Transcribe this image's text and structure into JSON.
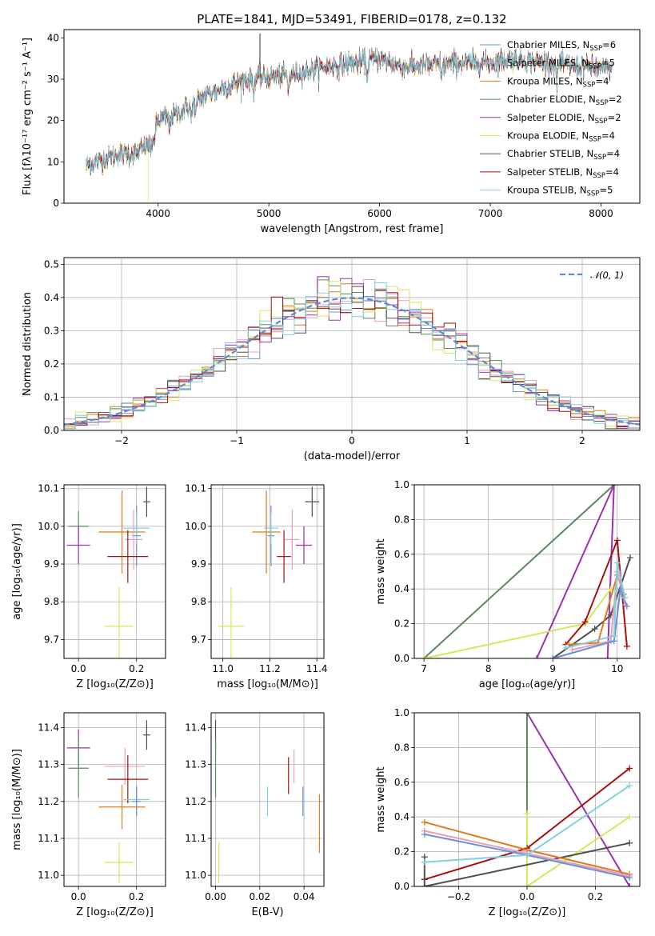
{
  "title": "PLATE=1841, MJD=53491, FIBERID=0178, z=0.132",
  "colors": {
    "chabrier_miles": "#6b8fd6",
    "salpeter_miles": "#e8a0b8",
    "kroupa_miles": "#e07a1f",
    "chabrier_elodie": "#5a8a5a",
    "salpeter_elodie": "#9b30b0",
    "kroupa_elodie": "#d4e85a",
    "chabrier_stelib": "#505050",
    "salpeter_stelib": "#a81010",
    "kroupa_stelib": "#80d0e0",
    "normal_curve": "#5b8ad6"
  },
  "chart_data": [
    {
      "id": "spectrum",
      "type": "line",
      "xlabel": "wavelength [Angstrom, rest frame]",
      "ylabel": "Flux [fλ10⁻¹⁷ erg cm⁻² s⁻¹ A⁻¹]",
      "xlim": [
        3150,
        8350
      ],
      "ylim": [
        0,
        42
      ],
      "xticks": [
        4000,
        5000,
        6000,
        7000,
        8000
      ],
      "yticks": [
        0,
        10,
        20,
        30,
        40
      ],
      "legend_position": "top-right",
      "series": [
        {
          "name": "Chabrier MILES, N",
          "sub": "SSP",
          "suffix": "=6",
          "key": "chabrier_miles"
        },
        {
          "name": "Salpeter MILES, N",
          "sub": "SSP",
          "suffix": "=5",
          "key": "salpeter_miles"
        },
        {
          "name": "Kroupa MILES, N",
          "sub": "SSP",
          "suffix": "=4",
          "key": "kroupa_miles"
        },
        {
          "name": "Chabrier ELODIE, N",
          "sub": "SSP",
          "suffix": "=2",
          "key": "chabrier_elodie"
        },
        {
          "name": "Salpeter ELODIE, N",
          "sub": "SSP",
          "suffix": "=2",
          "key": "salpeter_elodie"
        },
        {
          "name": "Kroupa ELODIE, N",
          "sub": "SSP",
          "suffix": "=4",
          "key": "kroupa_elodie"
        },
        {
          "name": "Chabrier STELIB, N",
          "sub": "SSP",
          "suffix": "=4",
          "key": "chabrier_stelib"
        },
        {
          "name": "Salpeter STELIB, N",
          "sub": "SSP",
          "suffix": "=4",
          "key": "salpeter_stelib"
        },
        {
          "name": "Kroupa STELIB, N",
          "sub": "SSP",
          "suffix": "=5",
          "key": "kroupa_stelib"
        }
      ],
      "spectrum_anchors": [
        [
          3350,
          9
        ],
        [
          3500,
          10.5
        ],
        [
          3650,
          12
        ],
        [
          3800,
          12
        ],
        [
          3900,
          14
        ],
        [
          3950,
          16
        ],
        [
          4000,
          20
        ],
        [
          4200,
          22
        ],
        [
          4300,
          24
        ],
        [
          4500,
          27
        ],
        [
          4800,
          30
        ],
        [
          5000,
          30.5
        ],
        [
          5200,
          31
        ],
        [
          5500,
          33
        ],
        [
          5800,
          34
        ],
        [
          6000,
          35
        ],
        [
          6200,
          33
        ],
        [
          6500,
          33.5
        ],
        [
          6800,
          34
        ],
        [
          7000,
          34
        ],
        [
          7200,
          35
        ],
        [
          7500,
          34
        ],
        [
          8000,
          32.5
        ],
        [
          8100,
          32.5
        ]
      ],
      "dropouts": [
        {
          "key": "salpeter_stelib",
          "wavelength": 3560
        },
        {
          "key": "kroupa_elodie",
          "wavelength": 3910
        },
        {
          "key": "kroupa_elodie",
          "wavelength": 6780
        },
        {
          "key": "salpeter_stelib",
          "wavelength": 7420
        }
      ]
    },
    {
      "id": "residuals",
      "type": "histogram",
      "xlabel": "(data-model)/error",
      "ylabel": "Normed distribution",
      "xlim": [
        -2.5,
        2.5
      ],
      "ylim": [
        0,
        0.52
      ],
      "xticks": [
        -2,
        -1,
        0,
        1,
        2
      ],
      "yticks": [
        0.0,
        0.1,
        0.2,
        0.3,
        0.4,
        0.5
      ],
      "bin_width": 0.1,
      "bin_start": -2.5,
      "legend": "𝒩(0, 1)",
      "legend_position": "top-right"
    },
    {
      "id": "age_vs_Z",
      "type": "scatter",
      "xlabel": "Z [log₁₀(Z/Z⊙)]",
      "ylabel": "age  [log₁₀(age/yr)]",
      "xlim": [
        -0.05,
        0.3
      ],
      "ylim": [
        9.65,
        10.11
      ],
      "xticks": [
        0.0,
        0.2
      ],
      "yticks": [
        9.7,
        9.8,
        9.9,
        10.0,
        10.1
      ],
      "points": [
        {
          "key": "chabrier_elodie",
          "x": 0.0,
          "y": 10.0,
          "xerr": 0.035,
          "yerr": 0.04
        },
        {
          "key": "salpeter_elodie",
          "x": 0.0,
          "y": 9.95,
          "xerr": 0.04,
          "yerr": 0.05
        },
        {
          "key": "kroupa_elodie",
          "x": 0.14,
          "y": 9.735,
          "xerr": 0.05,
          "yerr": 0.105
        },
        {
          "key": "kroupa_miles",
          "x": 0.15,
          "y": 9.985,
          "xerr": 0.08,
          "yerr": 0.11
        },
        {
          "key": "chabrier_miles",
          "x": 0.2,
          "y": 9.975,
          "xerr": 0.015,
          "yerr": 0.08
        },
        {
          "key": "salpeter_miles",
          "x": 0.19,
          "y": 9.965,
          "xerr": 0.03,
          "yerr": 0.08
        },
        {
          "key": "kroupa_stelib",
          "x": 0.2,
          "y": 9.995,
          "xerr": 0.045,
          "yerr": 0.04
        },
        {
          "key": "salpeter_stelib",
          "x": 0.17,
          "y": 9.92,
          "xerr": 0.07,
          "yerr": 0.07
        },
        {
          "key": "chabrier_stelib",
          "x": 0.235,
          "y": 10.065,
          "xerr": 0.012,
          "yerr": 0.04
        }
      ]
    },
    {
      "id": "age_vs_mass",
      "type": "scatter",
      "xlabel": "mass [log₁₀(M/M⊙)]",
      "ylabel": "",
      "xlim": [
        10.95,
        11.43
      ],
      "ylim": [
        9.65,
        10.11
      ],
      "xticks": [
        11.0,
        11.2,
        11.4
      ],
      "yticks": [
        9.7,
        9.8,
        9.9,
        10.0,
        10.1
      ],
      "points": [
        {
          "key": "kroupa_elodie",
          "x": 11.035,
          "y": 9.735,
          "xerr": 0.055,
          "yerr": 0.105
        },
        {
          "key": "kroupa_miles",
          "x": 11.185,
          "y": 9.985,
          "xerr": 0.06,
          "yerr": 0.11
        },
        {
          "key": "chabrier_miles",
          "x": 11.205,
          "y": 9.975,
          "xerr": 0.015,
          "yerr": 0.08
        },
        {
          "key": "kroupa_stelib",
          "x": 11.205,
          "y": 9.995,
          "xerr": 0.03,
          "yerr": 0.04
        },
        {
          "key": "salpeter_miles",
          "x": 11.295,
          "y": 9.965,
          "xerr": 0.03,
          "yerr": 0.08
        },
        {
          "key": "salpeter_stelib",
          "x": 11.26,
          "y": 9.92,
          "xerr": 0.03,
          "yerr": 0.07
        },
        {
          "key": "salpeter_elodie",
          "x": 11.345,
          "y": 9.95,
          "xerr": 0.035,
          "yerr": 0.05
        },
        {
          "key": "chabrier_stelib",
          "x": 11.38,
          "y": 10.065,
          "xerr": 0.03,
          "yerr": 0.04
        }
      ]
    },
    {
      "id": "weight_vs_age",
      "type": "line",
      "xlabel": "age  [log₁₀(age/yr)]",
      "ylabel": "mass weight",
      "xlim": [
        6.85,
        10.35
      ],
      "ylim": [
        0,
        1
      ],
      "xticks": [
        7,
        8,
        9,
        10
      ],
      "yticks": [
        0.0,
        0.2,
        0.4,
        0.6,
        0.8,
        1.0
      ],
      "series": [
        {
          "key": "chabrier_elodie",
          "x": [
            7.0,
            9.95
          ],
          "y": [
            0.0,
            1.0
          ]
        },
        {
          "key": "salpeter_elodie",
          "x": [
            8.75,
            9.95,
            9.85
          ],
          "y": [
            0.0,
            1.0,
            0.0
          ]
        },
        {
          "key": "kroupa_elodie",
          "x": [
            7.0,
            9.5,
            9.9,
            10.05
          ],
          "y": [
            0.0,
            0.2,
            0.4,
            0.4
          ]
        },
        {
          "key": "salpeter_stelib",
          "x": [
            9.2,
            9.5,
            10.0,
            10.15
          ],
          "y": [
            0.08,
            0.21,
            0.68,
            0.07
          ]
        },
        {
          "key": "chabrier_stelib",
          "x": [
            9.0,
            9.65,
            9.9,
            10.2
          ],
          "y": [
            0.0,
            0.17,
            0.25,
            0.58
          ]
        },
        {
          "key": "kroupa_miles",
          "x": [
            9.25,
            9.7,
            10.0,
            10.1
          ],
          "y": [
            0.08,
            0.09,
            0.48,
            0.37
          ]
        },
        {
          "key": "salpeter_miles",
          "x": [
            9.3,
            9.9,
            10.0,
            10.12
          ],
          "y": [
            0.05,
            0.1,
            0.5,
            0.31
          ]
        },
        {
          "key": "chabrier_miles",
          "x": [
            9.0,
            9.95,
            10.05,
            10.15
          ],
          "y": [
            0.0,
            0.1,
            0.4,
            0.3
          ]
        },
        {
          "key": "kroupa_stelib",
          "x": [
            9.2,
            9.95,
            10.0,
            10.12
          ],
          "y": [
            0.06,
            0.13,
            0.55,
            0.35
          ]
        }
      ]
    },
    {
      "id": "mass_vs_Z",
      "type": "scatter",
      "xlabel": "Z [log₁₀(Z/Z⊙)]",
      "ylabel": "mass [log₁₀(M/M⊙)]",
      "xlim": [
        -0.05,
        0.3
      ],
      "ylim": [
        10.97,
        11.44
      ],
      "xticks": [
        0.0,
        0.2
      ],
      "yticks": [
        11.0,
        11.1,
        11.2,
        11.3,
        11.4
      ],
      "points": [
        {
          "key": "salpeter_elodie",
          "x": 0.0,
          "y": 11.345,
          "xerr": 0.04,
          "yerr": 0.05
        },
        {
          "key": "chabrier_elodie",
          "x": 0.0,
          "y": 11.29,
          "xerr": 0.035,
          "yerr": 0.08
        },
        {
          "key": "salpeter_miles",
          "x": 0.16,
          "y": 11.295,
          "xerr": 0.07,
          "yerr": 0.05
        },
        {
          "key": "salpeter_stelib",
          "x": 0.17,
          "y": 11.26,
          "xerr": 0.07,
          "yerr": 0.065
        },
        {
          "key": "chabrier_stelib",
          "x": 0.235,
          "y": 11.38,
          "xerr": 0.012,
          "yerr": 0.04
        },
        {
          "key": "kroupa_stelib",
          "x": 0.2,
          "y": 11.205,
          "xerr": 0.045,
          "yerr": 0.04
        },
        {
          "key": "chabrier_miles",
          "x": 0.2,
          "y": 11.2,
          "xerr": 0.015,
          "yerr": 0.04
        },
        {
          "key": "kroupa_miles",
          "x": 0.15,
          "y": 11.185,
          "xerr": 0.08,
          "yerr": 0.06
        },
        {
          "key": "kroupa_elodie",
          "x": 0.14,
          "y": 11.035,
          "xerr": 0.05,
          "yerr": 0.055
        }
      ]
    },
    {
      "id": "mass_vs_ebv",
      "type": "scatter",
      "xlabel": "E(B-V)",
      "ylabel": "",
      "xlim": [
        -0.002,
        0.049
      ],
      "ylim": [
        10.97,
        11.44
      ],
      "xticks": [
        0.0,
        0.02,
        0.04
      ],
      "yticks": [
        11.0,
        11.1,
        11.2,
        11.3,
        11.4
      ],
      "points": [
        {
          "key": "chabrier_stelib",
          "x": 0.0,
          "y": 11.38,
          "xerr": 0,
          "yerr": 0.04
        },
        {
          "key": "chabrier_elodie",
          "x": 0.0,
          "y": 11.29,
          "xerr": 0,
          "yerr": 0.08
        },
        {
          "key": "kroupa_elodie",
          "x": 0.0015,
          "y": 11.035,
          "xerr": 0,
          "yerr": 0.055
        },
        {
          "key": "kroupa_stelib",
          "x": 0.0235,
          "y": 11.2,
          "xerr": 0,
          "yerr": 0.04
        },
        {
          "key": "salpeter_stelib",
          "x": 0.033,
          "y": 11.27,
          "xerr": 0,
          "yerr": 0.05
        },
        {
          "key": "salpeter_miles",
          "x": 0.0355,
          "y": 11.295,
          "xerr": 0,
          "yerr": 0.045
        },
        {
          "key": "chabrier_miles",
          "x": 0.0395,
          "y": 11.2,
          "xerr": 0,
          "yerr": 0.04
        },
        {
          "key": "kroupa_miles",
          "x": 0.047,
          "y": 11.14,
          "xerr": 0,
          "yerr": 0.08
        }
      ]
    },
    {
      "id": "weight_vs_Z",
      "type": "line",
      "xlabel": "Z [log₁₀(Z/Z⊙)]",
      "ylabel": "mass weight",
      "xlim": [
        -0.33,
        0.33
      ],
      "ylim": [
        0,
        1
      ],
      "xticks": [
        -0.2,
        0.0,
        0.2
      ],
      "yticks": [
        0.0,
        0.2,
        0.4,
        0.6,
        0.8,
        1.0
      ],
      "series": [
        {
          "key": "salpeter_elodie",
          "x": [
            0.0,
            0.3
          ],
          "y": [
            1.0,
            0.0
          ]
        },
        {
          "key": "chabrier_elodie",
          "x": [
            0.0,
            0.0
          ],
          "y": [
            1.0,
            0.0
          ]
        },
        {
          "key": "kroupa_elodie",
          "x": [
            0.0,
            0.0,
            0.3
          ],
          "y": [
            0.42,
            0.0,
            0.4
          ]
        },
        {
          "key": "salpeter_stelib",
          "x": [
            -0.3,
            0.0,
            0.3
          ],
          "y": [
            0.04,
            0.22,
            0.68
          ]
        },
        {
          "key": "chabrier_stelib",
          "x": [
            -0.3,
            -0.3,
            0.3
          ],
          "y": [
            0.17,
            0.0,
            0.25
          ]
        },
        {
          "key": "kroupa_miles",
          "x": [
            -0.3,
            0.0,
            0.3
          ],
          "y": [
            0.37,
            0.21,
            0.07
          ]
        },
        {
          "key": "salpeter_miles",
          "x": [
            -0.3,
            0.0,
            0.3
          ],
          "y": [
            0.32,
            0.19,
            0.06
          ]
        },
        {
          "key": "chabrier_miles",
          "x": [
            -0.3,
            0.0,
            0.3
          ],
          "y": [
            0.3,
            0.18,
            0.05
          ]
        },
        {
          "key": "kroupa_stelib",
          "x": [
            -0.3,
            0.0,
            0.3
          ],
          "y": [
            0.14,
            0.18,
            0.58
          ]
        }
      ]
    }
  ]
}
